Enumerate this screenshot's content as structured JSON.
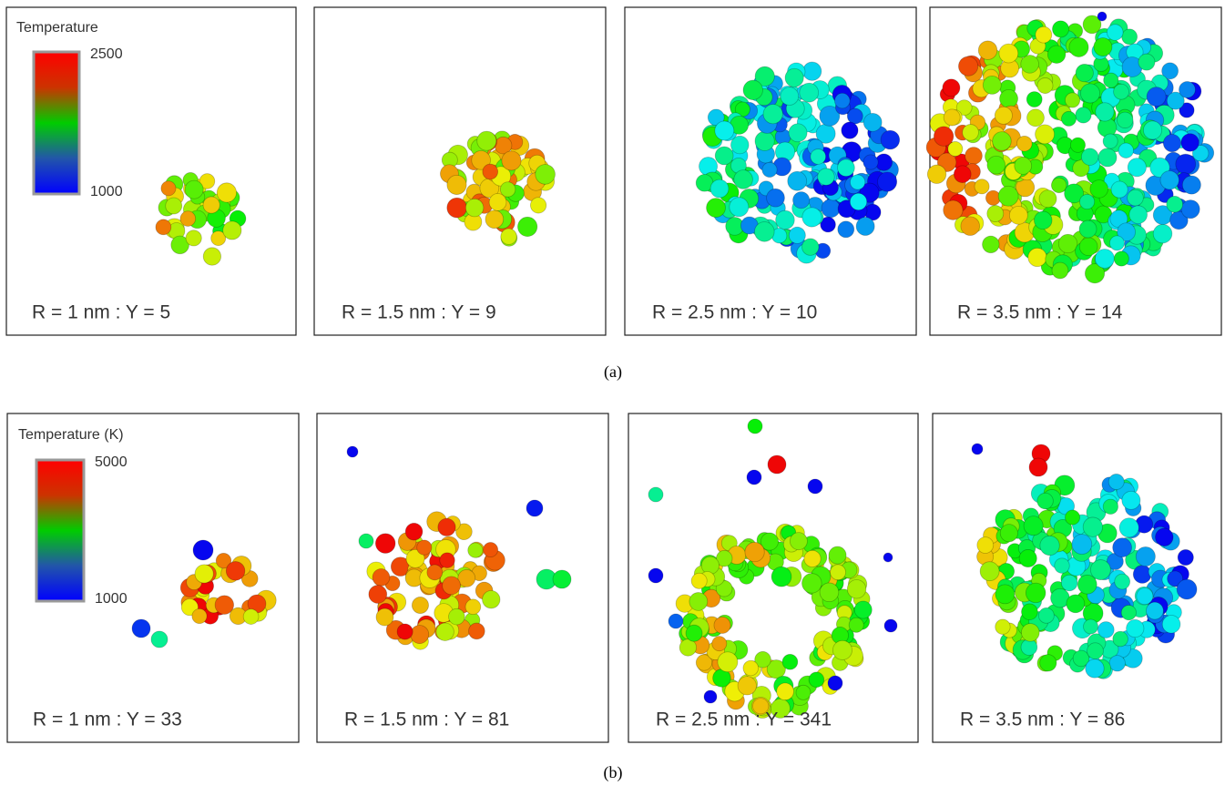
{
  "rows": [
    {
      "caption": "(a)",
      "legend": {
        "title": "Temperature",
        "max": 2500,
        "min": 1000
      },
      "panels": [
        "R = 1 nm : Y = 5",
        "R = 1.5 nm : Y = 9",
        "R = 2.5 nm : Y = 10",
        "R = 3.5 nm : Y = 14"
      ]
    },
    {
      "caption": "(b)",
      "legend": {
        "title": "Temperature (K)",
        "max": 5000,
        "min": 1000
      },
      "panels": [
        "R = 1 nm : Y = 33",
        "R = 1.5 nm : Y = 81",
        "R = 2.5 nm : Y = 341",
        "R = 3.5 nm : Y = 86"
      ]
    }
  ]
}
